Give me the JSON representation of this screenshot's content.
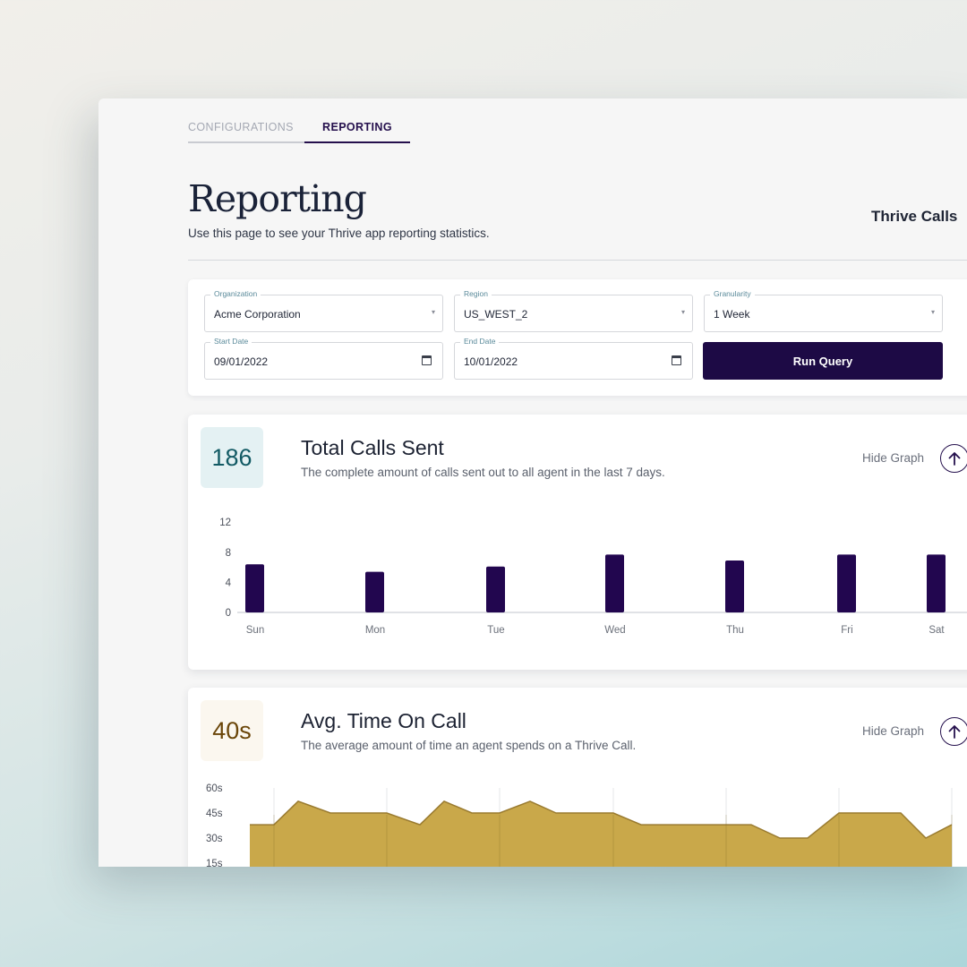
{
  "tabs": [
    {
      "label": "CONFIGURATIONS",
      "active": false
    },
    {
      "label": "REPORTING",
      "active": true
    }
  ],
  "header": {
    "title": "Reporting",
    "subtitle": "Use this page to see your Thrive app reporting statistics.",
    "app_name": "Thrive Calls"
  },
  "filters": {
    "organization": {
      "label": "Organization",
      "value": "Acme Corporation"
    },
    "region": {
      "label": "Region",
      "value": "US_WEST_2"
    },
    "granularity": {
      "label": "Granularity",
      "value": "1 Week"
    },
    "start_date": {
      "label": "Start Date",
      "value": "09/01/2022"
    },
    "end_date": {
      "label": "End Date",
      "value": "10/01/2022"
    },
    "run_label": "Run Query"
  },
  "cards": [
    {
      "stat": "186",
      "title": "Total Calls Sent",
      "description": "The complete amount of calls sent out to all agent in the last 7 days.",
      "toggle_label": "Hide Graph",
      "toggle_icon": "arrow-up-icon"
    },
    {
      "stat": "40s",
      "title": "Avg. Time On Call",
      "description": "The average amount of time an agent spends on a Thrive Call.",
      "toggle_label": "Hide Graph",
      "toggle_icon": "arrow-up-icon"
    }
  ],
  "colors": {
    "primary": "#1d0a45",
    "bar": "#22064f",
    "area_fill": "#c9a84a",
    "area_line": "#9a7b30",
    "stat_teal": "#125a64",
    "stat_gold": "#6a4508"
  },
  "chart_data": [
    {
      "type": "bar",
      "title": "Total Calls Sent",
      "categories": [
        "Sun",
        "Mon",
        "Tue",
        "Wed",
        "Thu",
        "Fri",
        "Sat"
      ],
      "values": [
        6.4,
        5.4,
        6.1,
        7.7,
        6.9,
        7.7,
        7.7
      ],
      "yticks": [
        0,
        4,
        8,
        12
      ],
      "ylim": [
        0,
        12
      ],
      "xlabel": "",
      "ylabel": "",
      "grid": false
    },
    {
      "type": "area",
      "title": "Avg. Time On Call",
      "x": [
        0,
        1,
        2,
        3,
        4,
        5,
        6,
        7,
        8,
        9,
        10,
        11,
        12,
        13,
        14,
        15,
        16,
        17,
        18,
        19,
        20
      ],
      "values": [
        38,
        38,
        52,
        45,
        45,
        38,
        52,
        45,
        45,
        52,
        45,
        45,
        38,
        38,
        38,
        30,
        30,
        45,
        45,
        30,
        38
      ],
      "yticks": [
        "60s",
        "45s",
        "30s",
        "15s"
      ],
      "ylim": [
        0,
        60
      ],
      "xlabel": "",
      "ylabel": "",
      "grid": "vertical"
    }
  ]
}
